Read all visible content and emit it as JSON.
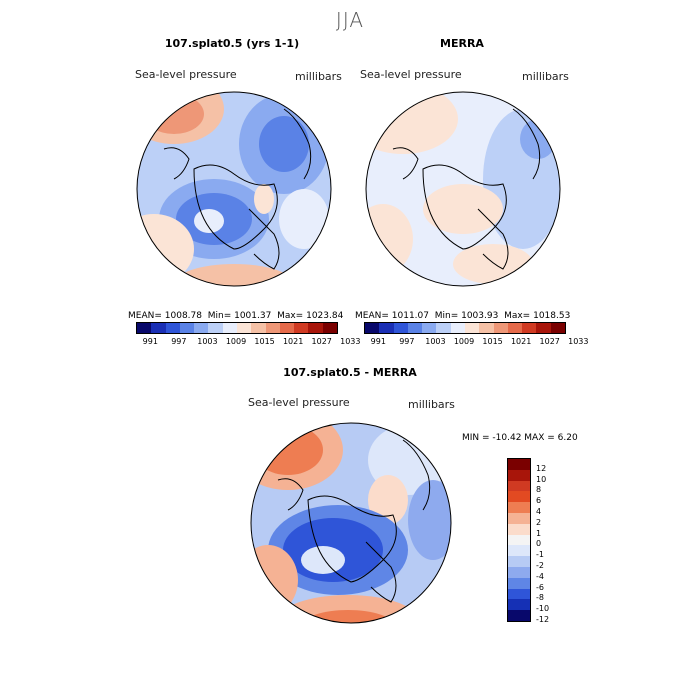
{
  "season_title": "JJA",
  "panels": [
    {
      "title": "107.splat0.5 (yrs 1-1)",
      "variable": "Sea-level pressure",
      "units": "millibars",
      "stats": {
        "mean_label": "MEAN=",
        "mean": "1008.78",
        "min_label": "Min=",
        "min": "1001.37",
        "max_label": "Max=",
        "max": "1023.84"
      },
      "colorbar_ticks": [
        "991",
        "997",
        "1003",
        "1009",
        "1015",
        "1021",
        "1027",
        "1033"
      ]
    },
    {
      "title": "MERRA",
      "variable": "Sea-level pressure",
      "units": "millibars",
      "stats": {
        "mean_label": "MEAN=",
        "mean": "1011.07",
        "min_label": "Min=",
        "min": "1003.93",
        "max_label": "Max=",
        "max": "1018.53"
      },
      "colorbar_ticks": [
        "991",
        "997",
        "1003",
        "1009",
        "1015",
        "1021",
        "1027",
        "1033"
      ]
    }
  ],
  "diff_panel": {
    "title": "107.splat0.5 - MERRA",
    "variable": "Sea-level pressure",
    "units": "millibars",
    "minmax_label": "MIN = -10.42 MAX =   6.20",
    "colorbar_ticks": [
      "12",
      "10",
      "8",
      "6",
      "4",
      "2",
      "1",
      "0",
      "-1",
      "-2",
      "-4",
      "-6",
      "-8",
      "-10",
      "-12"
    ]
  },
  "colors": {
    "abs_scale": [
      "#08086b",
      "#1a2fb5",
      "#2f55d8",
      "#5a82e6",
      "#8aaaf0",
      "#bcd0f7",
      "#e8eefc",
      "#fbe4d6",
      "#f5c1a6",
      "#ee9777",
      "#e56a4a",
      "#d03a22",
      "#a8150a",
      "#7a0000"
    ],
    "diff_scale": [
      "#7a0000",
      "#a8150a",
      "#d03a22",
      "#e24a22",
      "#ee7d52",
      "#f5b294",
      "#fbdccb",
      "#f4f4f4",
      "#dde7fa",
      "#b7cbf4",
      "#8eaaee",
      "#5f86e6",
      "#2f55d8",
      "#1530b5",
      "#08086b"
    ],
    "land_line": "#000000"
  }
}
